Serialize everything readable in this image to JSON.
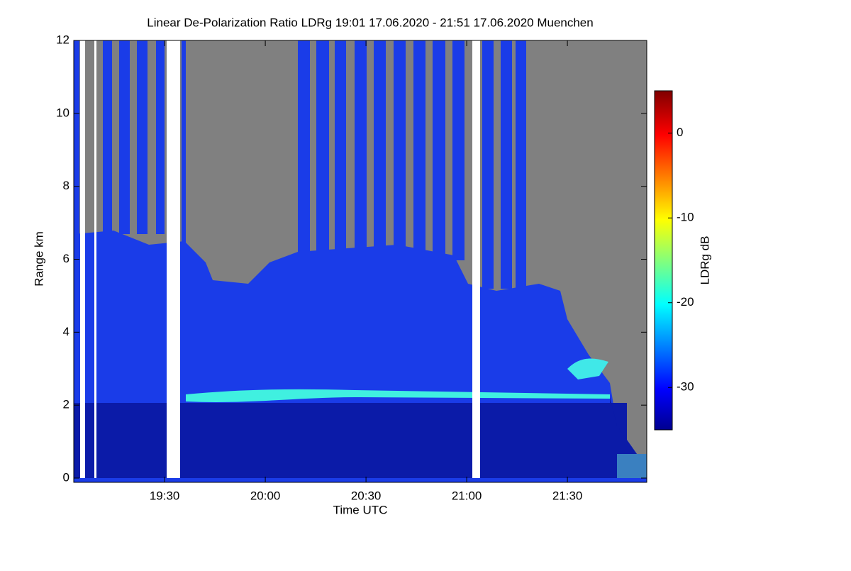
{
  "chart_data": {
    "type": "heatmap",
    "title": "Linear De-Polarization Ratio LDRg   19:01 17.06.2020 - 21:51 17.06.2020 Muenchen",
    "x_label": "Time UTC",
    "y_label": "Range km",
    "colorbar_label": "LDRg dB",
    "xlim": [
      19.049,
      21.894
    ],
    "xticks": [
      {
        "value": 19.5,
        "label": "19:30"
      },
      {
        "value": 20.0,
        "label": "20:00"
      },
      {
        "value": 20.5,
        "label": "20:30"
      },
      {
        "value": 21.0,
        "label": "21:00"
      },
      {
        "value": 21.5,
        "label": "21:30"
      }
    ],
    "ylim": [
      0,
      12
    ],
    "yticks": [
      0,
      2,
      4,
      6,
      8,
      10,
      12
    ],
    "clim": [
      -35,
      5
    ],
    "cticks": [
      0,
      -10,
      -20,
      -30
    ]
  }
}
